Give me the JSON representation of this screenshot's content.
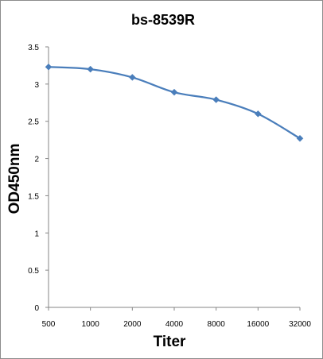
{
  "chart_data": {
    "type": "line",
    "title": "bs-8539R",
    "xlabel": "Titer",
    "ylabel": "OD450nm",
    "categories": [
      "500",
      "1000",
      "2000",
      "4000",
      "8000",
      "16000",
      "32000"
    ],
    "series": [
      {
        "values": [
          3.23,
          3.2,
          3.09,
          2.89,
          2.79,
          2.6,
          2.27
        ]
      }
    ],
    "ylim": [
      0,
      3.5
    ],
    "yticks": [
      "0",
      "0.5",
      "1",
      "1.5",
      "2",
      "2.5",
      "3",
      "3.5"
    ],
    "grid": false,
    "legend": "none",
    "colors": {
      "series": "#4a7ebb",
      "axis": "#868686"
    }
  }
}
